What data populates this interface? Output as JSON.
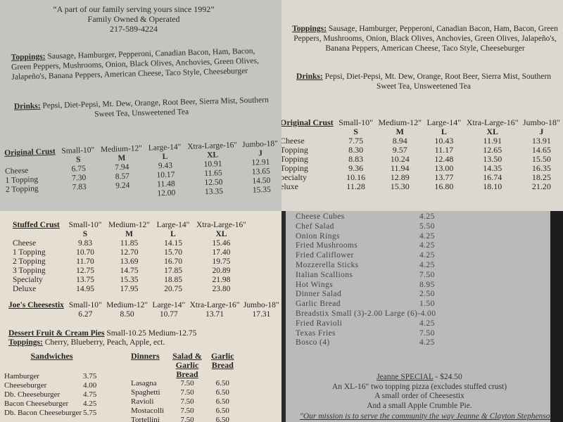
{
  "q1": {
    "tagline": "“A part of our family serving yours since 1992”",
    "owned": "Family Owned & Operated",
    "phone": "217-589-4224",
    "toppings_label": "Toppings:",
    "toppings": " Sausage, Hamburger, Pepperoni, Canadian Bacon, Ham, Bacon, Green Peppers, Mushrooms, Onion, Black Olives, Anchovies, Green Olives, Jalapeño's, Banana Peppers, American Cheese, Taco Style, Cheeseburger",
    "drinks_label": "Drinks:",
    "drinks": " Pepsi, Diet-Pepsi, Mt. Dew, Orange, Root Beer, Sierra Mist, Southern Sweet Tea, Unsweetened Tea",
    "table": {
      "title": "Original Crust",
      "sizes": [
        "Small-10\"",
        "Medium-12\"",
        "Large-14\"",
        "Xtra-Large-16\"",
        "Jumbo-18\""
      ],
      "codes": [
        "S",
        "M",
        "L",
        "XL",
        "J"
      ],
      "rows": [
        {
          "name": "Cheese",
          "p": [
            "6.75",
            "7.94",
            "9.43",
            "10.91",
            "12.91"
          ]
        },
        {
          "name": "1 Topping",
          "p": [
            "7.30",
            "8.57",
            "10.17",
            "11.65",
            "13.65"
          ]
        },
        {
          "name": "2 Topping",
          "p": [
            "7.83",
            "9.24",
            "11.48",
            "12.50",
            "14.50"
          ]
        },
        {
          "name": "",
          "p": [
            "",
            "",
            "12.00",
            "13.35",
            "15.35"
          ]
        }
      ]
    }
  },
  "q2": {
    "toppings_label": "Toppings:",
    "toppings": " Sausage, Hamburger, Pepperoni, Canadian Bacon, Ham, Bacon, Green Peppers, Mushrooms, Onion, Black Olives, Anchovies, Green Olives, Jalapeño's, Banana Peppers, American Cheese, Taco Style, Cheeseburger",
    "drinks_label": "Drinks:",
    "drinks": " Pepsi, Diet-Pepsi, Mt. Dew, Orange, Root Beer, Sierra Mist, Southern Sweet Tea, Unsweetened Tea",
    "table": {
      "title": "Original Crust",
      "sizes": [
        "Small-10\"",
        "Medium-12\"",
        "Large-14\"",
        "Xtra-Large-16\"",
        "Jumbo-18\""
      ],
      "codes": [
        "S",
        "M",
        "L",
        "XL",
        "J"
      ],
      "rows": [
        {
          "name": "Cheese",
          "p": [
            "7.75",
            "8.94",
            "10.43",
            "11.91",
            "13.91"
          ]
        },
        {
          "name": "Topping",
          "p": [
            "8.30",
            "9.57",
            "11.17",
            "12.65",
            "14.65"
          ]
        },
        {
          "name": "Topping",
          "p": [
            "8.83",
            "10.24",
            "12.48",
            "13.50",
            "15.50"
          ]
        },
        {
          "name": "Topping",
          "p": [
            "9.36",
            "11.94",
            "13.00",
            "14.35",
            "16.35"
          ]
        },
        {
          "name": "pecialty",
          "p": [
            "10.16",
            "12.89",
            "13.77",
            "16.74",
            "18.25"
          ]
        },
        {
          "name": "eluxe",
          "p": [
            "11.28",
            "15.30",
            "16.80",
            "18.10",
            "21.20"
          ]
        }
      ]
    }
  },
  "q3": {
    "stuffed": {
      "title": "Stuffed Crust",
      "sizes": [
        "Small-10\"",
        "Medium-12\"",
        "Large-14\"",
        "Xtra-Large-16\""
      ],
      "codes": [
        "S",
        "M",
        "L",
        "XL"
      ],
      "rows": [
        {
          "name": "Cheese",
          "p": [
            "9.83",
            "11.85",
            "14.15",
            "15.46"
          ]
        },
        {
          "name": "1 Topping",
          "p": [
            "10.70",
            "12.70",
            "15.70",
            "17.40"
          ]
        },
        {
          "name": "2 Topping",
          "p": [
            "11.70",
            "13.69",
            "16.70",
            "19.75"
          ]
        },
        {
          "name": "3 Topping",
          "p": [
            "12.75",
            "14.75",
            "17.85",
            "20.89"
          ]
        },
        {
          "name": "Specialty",
          "p": [
            "13.75",
            "15.35",
            "18.85",
            "21.98"
          ]
        },
        {
          "name": "Deluxe",
          "p": [
            "14.95",
            "17.95",
            "20.75",
            "23.80"
          ]
        }
      ]
    },
    "cheesestix": {
      "title": "Joe's Cheesestix",
      "sizes": [
        "Small-10\"",
        "Medium-12\"",
        "Large-14\"",
        "Xtra-Large-16\"",
        "Jumbo-18\""
      ],
      "p": [
        "6.27",
        "8.50",
        "10.77",
        "13.71",
        "17.31"
      ]
    },
    "pies": {
      "title": "Dessert Fruit & Cream Pies",
      "prices": " Small-10.25   Medium-12.75",
      "toppings_label": "Toppings:",
      "toppings": " Cherry, Blueberry, Peach, Apple, ect."
    },
    "sandwiches": {
      "title": "Sandwiches",
      "items": [
        {
          "name": "Hamburger",
          "price": "3.75"
        },
        {
          "name": "Cheeseburger",
          "price": "4.00"
        },
        {
          "name": "Db. Cheeseburger",
          "price": "4.75"
        },
        {
          "name": "Bacon Cheeseburger",
          "price": "4.25"
        },
        {
          "name": "Db. Bacon Cheeseburger",
          "price": "5.75"
        }
      ]
    },
    "dinners": {
      "title": "Dinners",
      "col1": "Salad & Garlic Bread",
      "col2": "Garlic Bread",
      "items": [
        {
          "name": "Lasagna",
          "a": "7.50",
          "b": "6.50"
        },
        {
          "name": "Spaghetti",
          "a": "7.50",
          "b": "6.50"
        },
        {
          "name": "Ravioli",
          "a": "7.50",
          "b": "6.50"
        },
        {
          "name": "Mostacolli",
          "a": "7.50",
          "b": "6.50"
        },
        {
          "name": "Tortellini",
          "a": "7.50",
          "b": "6.50"
        }
      ]
    }
  },
  "q4": {
    "sides": [
      {
        "name": "Cheese Cubes",
        "price": "4.25"
      },
      {
        "name": "Chef Salad",
        "price": "5.50"
      },
      {
        "name": "Onion Rings",
        "price": "4.25"
      },
      {
        "name": "Fried Mushrooms",
        "price": "4.25"
      },
      {
        "name": "Fried Califlower",
        "price": "4.25"
      },
      {
        "name": "Mozzerella Sticks",
        "price": "4.25"
      },
      {
        "name": "Italian Scallions",
        "price": "7.50"
      },
      {
        "name": "Hot Wings",
        "price": "8.95"
      },
      {
        "name": "Dinner Salad",
        "price": "2.50"
      },
      {
        "name": "Garlic Bread",
        "price": "1.50"
      },
      {
        "name": "Breadstix  Small (3)-2.00  Large (6)-4.00",
        "price": ""
      },
      {
        "name": "Fried Ravioli",
        "price": "4.25"
      },
      {
        "name": "Texas Fries",
        "price": "7.50"
      },
      {
        "name": "Bosco (4)",
        "price": "4.25"
      }
    ],
    "special_title": "Jeanne SPECIAL",
    "special_price": " - $24.50",
    "special_lines": [
      "An XL-16\" two topping pizza (excludes stuffed crust)",
      "A small order of Cheesestix",
      "And a small Apple Crumble Pie."
    ],
    "mission": "\"Our mission is to serve the community the way Jeanne & Clayton Stephenson has for many years. All of our ingredients have remained Jeanne's secret recipe and we"
  }
}
